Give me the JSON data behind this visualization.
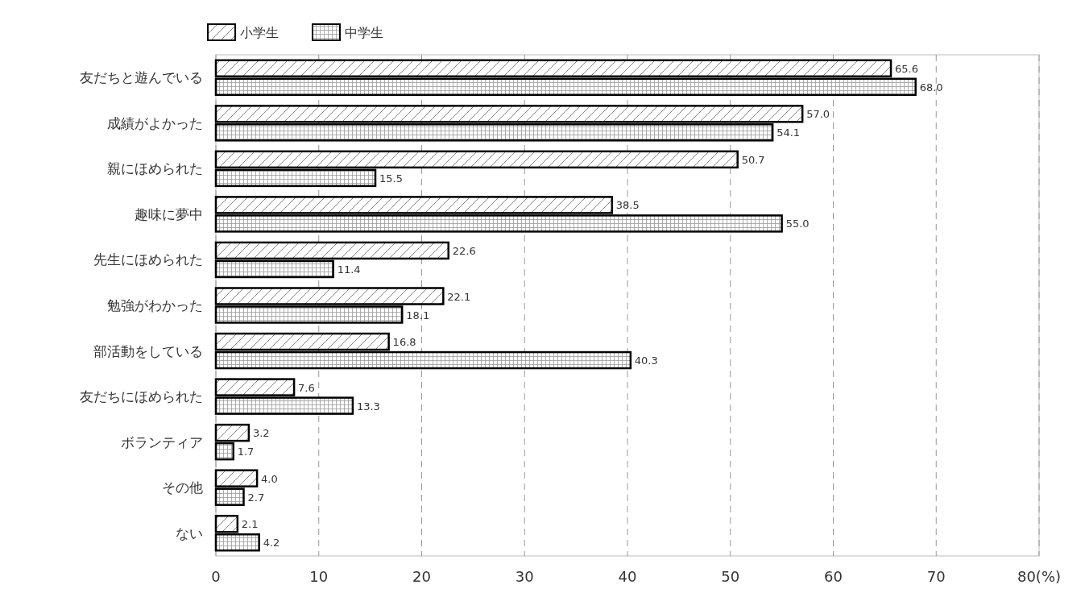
{
  "chart_data": {
    "type": "bar",
    "orientation": "horizontal",
    "categories": [
      "友だちと遊んでいる",
      "成績がよかった",
      "親にほめられた",
      "趣味に夢中",
      "先生にほめられた",
      "勉強がわかった",
      "部活動をしている",
      "友だちにほめられた",
      "ボランティア",
      "その他",
      "ない"
    ],
    "series": [
      {
        "name": "小学生",
        "color": "#ffffff",
        "values": [
          65.6,
          57.0,
          50.7,
          38.5,
          22.6,
          22.1,
          16.8,
          7.6,
          3.2,
          4.0,
          2.1
        ],
        "value_labels": [
          "65.6",
          "57.0",
          "50.7",
          "38.5",
          "22.6",
          "22.1",
          "16.8",
          "7.6",
          "3.2",
          "4.0",
          "2.1"
        ]
      },
      {
        "name": "中学生",
        "color": "#ffffff",
        "values": [
          68.0,
          54.1,
          15.5,
          55.0,
          11.4,
          18.1,
          40.3,
          13.3,
          1.7,
          2.7,
          4.2
        ],
        "value_labels": [
          "68.0",
          "54.1",
          "15.5",
          "55.0",
          "11.4",
          "18.1",
          "40.3",
          "13.3",
          "1.7",
          "2.7",
          "4.2"
        ]
      }
    ],
    "xlim": [
      0,
      80
    ],
    "xticks": [
      0,
      10,
      20,
      30,
      40,
      50,
      60,
      70,
      {
        "value": 80,
        "label": "80(%)"
      }
    ],
    "grid": "x",
    "legend": "top left"
  }
}
